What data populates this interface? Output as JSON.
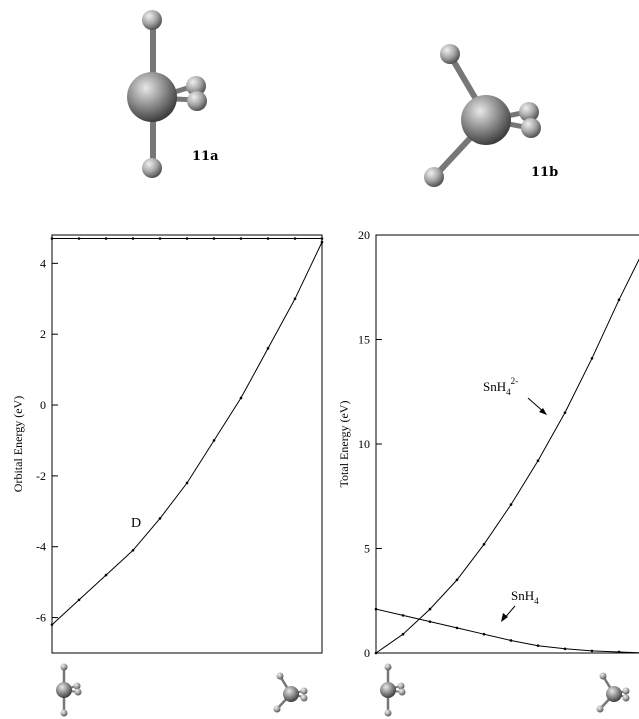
{
  "figure": {
    "structures": [
      {
        "label": "11a"
      },
      {
        "label": "11b"
      }
    ]
  },
  "chart_data": [
    {
      "type": "line",
      "ylabel": "Orbital Energy (eV)",
      "ylim": [
        -7,
        4.8
      ],
      "yticks": [
        -6,
        -4,
        -2,
        0,
        2,
        4
      ],
      "x_endpoints": [
        "11a",
        "11b"
      ],
      "x": [
        0.0,
        0.1,
        0.2,
        0.3,
        0.4,
        0.5,
        0.6,
        0.7,
        0.8,
        0.9,
        1.0
      ],
      "series": [
        {
          "values": [
            4.7,
            4.7,
            4.7,
            4.7,
            4.7,
            4.7,
            4.7,
            4.7,
            4.7,
            4.7,
            4.7
          ]
        },
        {
          "name": "D",
          "values": [
            -6.2,
            -5.5,
            -4.8,
            -4.1,
            -3.2,
            -2.2,
            -1.0,
            0.2,
            1.6,
            3.0,
            4.6
          ]
        }
      ],
      "annotations": [
        {
          "text": "D",
          "x": 0.33,
          "y": -3.5
        }
      ],
      "grid": false
    },
    {
      "type": "line",
      "ylabel": "Total Energy (eV)",
      "ylim": [
        0,
        20
      ],
      "yticks": [
        0,
        5,
        10,
        15,
        20
      ],
      "x_endpoints": [
        "11a",
        "11b"
      ],
      "x": [
        0.0,
        0.1,
        0.2,
        0.3,
        0.4,
        0.5,
        0.6,
        0.7,
        0.8,
        0.9,
        1.0
      ],
      "series": [
        {
          "name": "SnH4 2-",
          "values": [
            0.0,
            0.9,
            2.1,
            3.5,
            5.2,
            7.1,
            9.2,
            11.5,
            14.1,
            16.9,
            19.5
          ]
        },
        {
          "name": "SnH4",
          "values": [
            2.1,
            1.8,
            1.5,
            1.2,
            0.9,
            0.6,
            0.35,
            0.2,
            0.1,
            0.05,
            0.0
          ]
        }
      ],
      "annotations": [
        {
          "text": "SnH",
          "sub": "4",
          "sup": "2-",
          "x": 0.48,
          "y": 12.7
        },
        {
          "text": "SnH",
          "sub": "4",
          "x": 0.55,
          "y": 2.8
        }
      ],
      "grid": false
    }
  ]
}
